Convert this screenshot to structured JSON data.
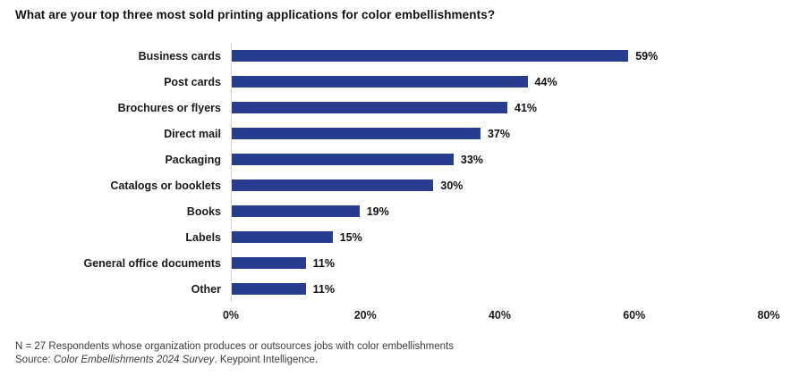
{
  "title": "What are your top three most sold printing applications for color embellishments?",
  "chart_data": {
    "type": "bar",
    "orientation": "horizontal",
    "title": "What are your top three most sold printing applications for color embellishments?",
    "categories": [
      "Business cards",
      "Post cards",
      "Brochures or flyers",
      "Direct mail",
      "Packaging",
      "Catalogs or booklets",
      "Books",
      "Labels",
      "General office documents",
      "Other"
    ],
    "values": [
      59,
      44,
      41,
      37,
      33,
      30,
      19,
      15,
      11,
      11
    ],
    "value_labels": [
      "59%",
      "44%",
      "41%",
      "37%",
      "33%",
      "30%",
      "19%",
      "15%",
      "11%",
      "11%"
    ],
    "x_ticks": [
      "0%",
      "20%",
      "40%",
      "60%",
      "80%"
    ],
    "xlim": [
      0,
      80
    ],
    "xlabel": "",
    "ylabel": "",
    "grid": false,
    "legend": false,
    "bar_color": "#283d8f",
    "axis_line_color": "#d6d6d6"
  },
  "footer": {
    "note": "N = 27 Respondents whose organization produces or outsources jobs with color embellishments",
    "source_prefix": "Source: ",
    "source_italic": "Color Embellishments 2024 Survey",
    "source_suffix": ". Keypoint Intelligence."
  }
}
